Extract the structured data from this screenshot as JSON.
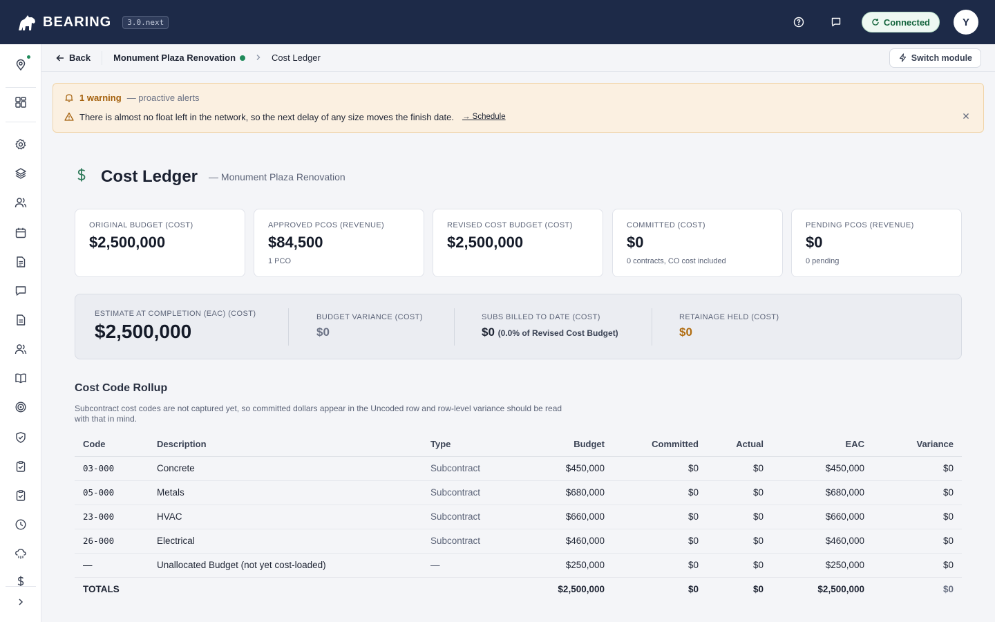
{
  "app": {
    "brand": "BEARING",
    "version": "3.0.next",
    "status": "Connected",
    "user_initial": "Y"
  },
  "breadcrumb": {
    "back": "Back",
    "project": "Monument Plaza Renovation",
    "current": "Cost Ledger",
    "switch_module": "Switch module"
  },
  "alert": {
    "count_label": "1 warning",
    "subtitle": "— proactive alerts",
    "message": "There is almost no float left in the network, so the next delay of any size moves the finish date.",
    "link": "→ Schedule"
  },
  "header": {
    "title": "Cost Ledger",
    "subtitle": "— Monument Plaza Renovation"
  },
  "cards": [
    {
      "label": "ORIGINAL BUDGET (COST)",
      "value": "$2,500,000",
      "note": ""
    },
    {
      "label": "APPROVED PCOS (REVENUE)",
      "value": "$84,500",
      "note": "1 PCO"
    },
    {
      "label": "REVISED COST BUDGET (COST)",
      "value": "$2,500,000",
      "note": ""
    },
    {
      "label": "COMMITTED (COST)",
      "value": "$0",
      "note": "0 contracts, CO cost included"
    },
    {
      "label": "PENDING PCOS (REVENUE)",
      "value": "$0",
      "note": "0 pending"
    }
  ],
  "summary": {
    "eac": {
      "label": "ESTIMATE AT COMPLETION (EAC) (COST)",
      "value": "$2,500,000"
    },
    "variance": {
      "label": "BUDGET VARIANCE (COST)",
      "value": "$0"
    },
    "billed": {
      "label": "SUBS BILLED TO DATE (COST)",
      "value": "$0",
      "pct": "(0.0% of Revised Cost Budget)"
    },
    "retainage": {
      "label": "RETAINAGE HELD (COST)",
      "value": "$0"
    }
  },
  "rollup": {
    "title": "Cost Code Rollup",
    "note": "Subcontract cost codes are not captured yet, so committed dollars appear in the Uncoded row and row-level variance should be read with that in mind.",
    "columns": [
      "Code",
      "Description",
      "Type",
      "Budget",
      "Committed",
      "Actual",
      "EAC",
      "Variance"
    ],
    "rows": [
      {
        "code": "03-000",
        "description": "Concrete",
        "type": "Subcontract",
        "budget": "$450,000",
        "committed": "$0",
        "actual": "$0",
        "eac": "$450,000",
        "variance": "$0"
      },
      {
        "code": "05-000",
        "description": "Metals",
        "type": "Subcontract",
        "budget": "$680,000",
        "committed": "$0",
        "actual": "$0",
        "eac": "$680,000",
        "variance": "$0"
      },
      {
        "code": "23-000",
        "description": "HVAC",
        "type": "Subcontract",
        "budget": "$660,000",
        "committed": "$0",
        "actual": "$0",
        "eac": "$660,000",
        "variance": "$0"
      },
      {
        "code": "26-000",
        "description": "Electrical",
        "type": "Subcontract",
        "budget": "$460,000",
        "committed": "$0",
        "actual": "$0",
        "eac": "$460,000",
        "variance": "$0"
      },
      {
        "code": "—",
        "description": "Unallocated Budget (not yet cost-loaded)",
        "type": "—",
        "budget": "$250,000",
        "committed": "$0",
        "actual": "$0",
        "eac": "$250,000",
        "variance": "$0"
      }
    ],
    "totals": {
      "label": "TOTALS",
      "budget": "$2,500,000",
      "committed": "$0",
      "actual": "$0",
      "eac": "$2,500,000",
      "variance": "$0"
    }
  },
  "sidebar": {
    "icons": [
      "location-icon",
      "grid-icon",
      "gear-icon",
      "layers-icon",
      "users-icon",
      "calendar-icon",
      "document-icon",
      "chat-icon",
      "file-icon",
      "team-icon",
      "book-icon",
      "target-icon",
      "shield-icon",
      "clipboard-icon",
      "clipboard-check-icon",
      "clock-icon",
      "cloud-rain-icon",
      "dollar-icon",
      "chevron-right-icon"
    ]
  },
  "colors": {
    "navy": "#1d2a48",
    "accent_green": "#1f8a5a",
    "warning_amber": "#a4600c",
    "alert_bg": "#fbf0e1"
  }
}
